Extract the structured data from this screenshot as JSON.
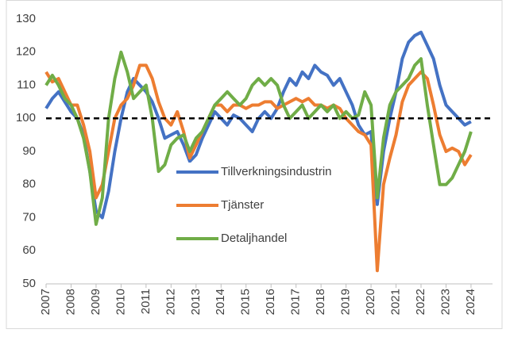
{
  "chart_data": {
    "type": "line",
    "x": [
      2007,
      2007.25,
      2007.5,
      2007.75,
      2008,
      2008.25,
      2008.5,
      2008.75,
      2009,
      2009.25,
      2009.5,
      2009.75,
      2010,
      2010.25,
      2010.5,
      2010.75,
      2011,
      2011.25,
      2011.5,
      2011.75,
      2012,
      2012.25,
      2012.5,
      2012.75,
      2013,
      2013.25,
      2013.5,
      2013.75,
      2014,
      2014.25,
      2014.5,
      2014.75,
      2015,
      2015.25,
      2015.5,
      2015.75,
      2016,
      2016.25,
      2016.5,
      2016.75,
      2017,
      2017.25,
      2017.5,
      2017.75,
      2018,
      2018.25,
      2018.5,
      2018.75,
      2019,
      2019.25,
      2019.5,
      2019.75,
      2020,
      2020.25,
      2020.5,
      2020.75,
      2021,
      2021.25,
      2021.5,
      2021.75,
      2022,
      2022.25,
      2022.5,
      2022.75,
      2023,
      2023.25,
      2023.5,
      2023.75,
      2024
    ],
    "series": [
      {
        "name": "Tillverkningsindustrin",
        "color": "#4472c4",
        "values": [
          103,
          106,
          108,
          105,
          102,
          100,
          95,
          84,
          72,
          70,
          78,
          90,
          100,
          108,
          112,
          110,
          108,
          105,
          100,
          94,
          95,
          96,
          92,
          87,
          89,
          94,
          98,
          102,
          100,
          98,
          101,
          100,
          98,
          96,
          100,
          102,
          100,
          103,
          108,
          112,
          110,
          114,
          112,
          116,
          114,
          113,
          110,
          112,
          108,
          104,
          98,
          95,
          96,
          74,
          90,
          100,
          108,
          118,
          123,
          125,
          126,
          122,
          118,
          110,
          104,
          102,
          100,
          98,
          99
        ]
      },
      {
        "name": "Tjänster",
        "color": "#ed7d31",
        "values": [
          114,
          111,
          112,
          108,
          104,
          104,
          98,
          90,
          76,
          80,
          90,
          100,
          104,
          106,
          110,
          116,
          116,
          112,
          105,
          100,
          98,
          102,
          96,
          88,
          92,
          96,
          100,
          104,
          104,
          102,
          104,
          104,
          103,
          104,
          104,
          105,
          105,
          103,
          104,
          105,
          106,
          105,
          106,
          104,
          104,
          103,
          104,
          103,
          100,
          98,
          96,
          95,
          92,
          54,
          80,
          88,
          95,
          105,
          110,
          112,
          114,
          112,
          104,
          95,
          90,
          91,
          90,
          86,
          89
        ]
      },
      {
        "name": "Detaljhandel",
        "color": "#70ad47",
        "values": [
          110,
          113,
          110,
          106,
          104,
          100,
          94,
          84,
          68,
          76,
          100,
          112,
          120,
          114,
          106,
          108,
          110,
          100,
          84,
          86,
          92,
          94,
          95,
          90,
          94,
          96,
          100,
          104,
          106,
          108,
          106,
          104,
          106,
          110,
          112,
          110,
          112,
          110,
          104,
          100,
          102,
          104,
          100,
          102,
          104,
          102,
          104,
          100,
          102,
          100,
          101,
          108,
          104,
          76,
          94,
          104,
          108,
          110,
          112,
          116,
          118,
          104,
          92,
          80,
          80,
          82,
          86,
          90,
          96
        ]
      }
    ],
    "hline": 100,
    "xlim": [
      2007,
      2024.86
    ],
    "xticks": [
      2007,
      2008,
      2009,
      2010,
      2011,
      2012,
      2013,
      2014,
      2015,
      2016,
      2017,
      2018,
      2019,
      2020,
      2021,
      2022,
      2023,
      2024
    ],
    "ylim": [
      50,
      130
    ],
    "yticks": [
      50,
      60,
      70,
      80,
      90,
      100,
      110,
      120,
      130
    ]
  }
}
